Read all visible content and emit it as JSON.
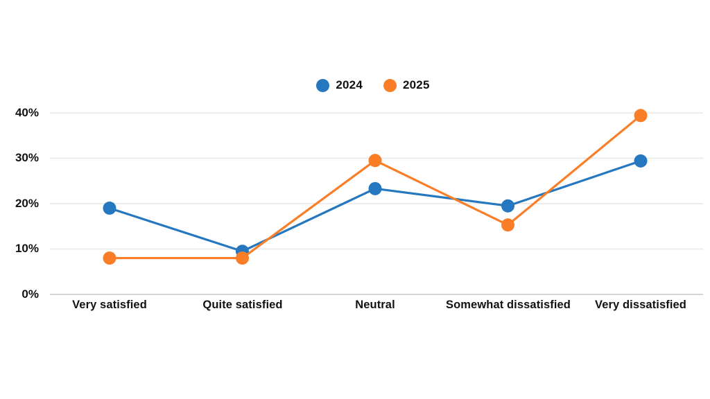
{
  "chart_data": {
    "type": "line",
    "title": "",
    "xlabel": "",
    "ylabel": "",
    "categories": [
      "Very satisfied",
      "Quite satisfied",
      "Neutral",
      "Somewhat dissatisfied",
      "Very dissatisfied"
    ],
    "series": [
      {
        "name": "2024",
        "color": "#2577BF",
        "values": [
          19,
          9.5,
          23.3,
          19.5,
          29.4
        ]
      },
      {
        "name": "2025",
        "color": "#F97E27",
        "values": [
          8,
          8,
          29.5,
          15.3,
          39.4
        ]
      }
    ],
    "ylim": [
      0,
      42
    ],
    "yticks": [
      {
        "value": 40,
        "label": "40%"
      },
      {
        "value": 30,
        "label": "30%"
      },
      {
        "value": 20,
        "label": "20%"
      },
      {
        "value": 10,
        "label": "10%"
      },
      {
        "value": 0,
        "label": "0%"
      }
    ],
    "grid": true,
    "legend_position": "top-center",
    "colors": {
      "grid": "#ebebeb",
      "axis": "#d4d4d4",
      "text": "#111111",
      "background": "#ffffff"
    }
  }
}
